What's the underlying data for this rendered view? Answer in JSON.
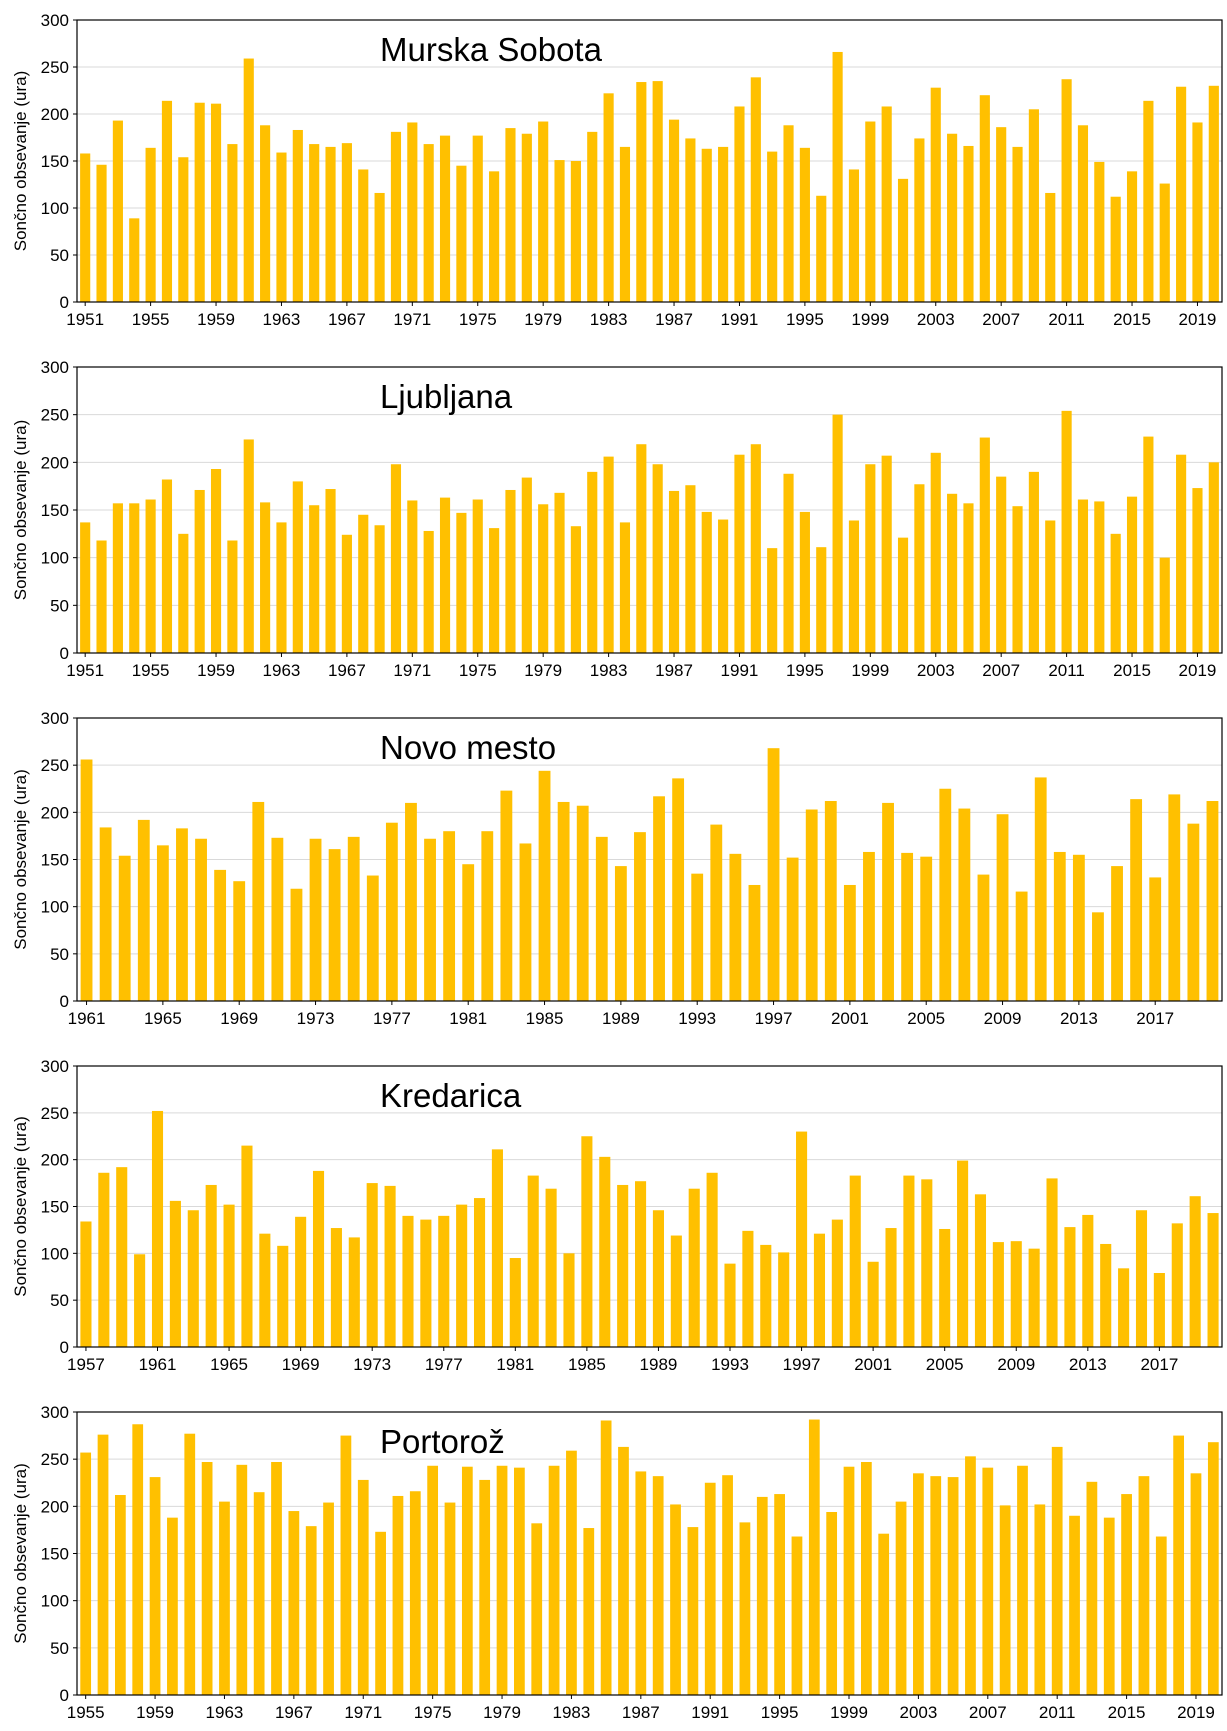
{
  "chart_data": [
    {
      "type": "bar",
      "title": "Murska Sobota",
      "ylabel": "Sončno obsevanje (ura)",
      "ylim": [
        0,
        300
      ],
      "yticks": [
        0,
        50,
        100,
        150,
        200,
        250,
        300
      ],
      "bar_color": "#FFC000",
      "grid": true,
      "x_start": 1951,
      "x_tick_labels": [
        "1951",
        "1955",
        "1959",
        "1963",
        "1967",
        "1971",
        "1975",
        "1979",
        "1983",
        "1987",
        "1991",
        "1995",
        "1999",
        "2003",
        "2007",
        "2011",
        "2015",
        "2019"
      ],
      "values": [
        158,
        146,
        193,
        89,
        164,
        214,
        154,
        212,
        211,
        168,
        259,
        188,
        159,
        183,
        168,
        165,
        169,
        141,
        116,
        181,
        191,
        168,
        177,
        145,
        177,
        139,
        185,
        179,
        192,
        151,
        150,
        181,
        222,
        165,
        234,
        235,
        194,
        174,
        163,
        165,
        208,
        239,
        160,
        188,
        164,
        113,
        266,
        141,
        192,
        208,
        131,
        174,
        228,
        179,
        166,
        220,
        186,
        165,
        205,
        116,
        237,
        188,
        149,
        112,
        139,
        214,
        126,
        229,
        191,
        230
      ]
    },
    {
      "type": "bar",
      "title": "Ljubljana",
      "ylabel": "Sončno obsevanje (ura)",
      "ylim": [
        0,
        300
      ],
      "yticks": [
        0,
        50,
        100,
        150,
        200,
        250,
        300
      ],
      "bar_color": "#FFC000",
      "grid": true,
      "x_start": 1951,
      "x_tick_labels": [
        "1951",
        "1955",
        "1959",
        "1963",
        "1967",
        "1971",
        "1975",
        "1979",
        "1983",
        "1987",
        "1991",
        "1995",
        "1999",
        "2003",
        "2007",
        "2011",
        "2015",
        "2019"
      ],
      "values": [
        137,
        118,
        157,
        157,
        161,
        182,
        125,
        171,
        193,
        118,
        224,
        158,
        137,
        180,
        155,
        172,
        124,
        145,
        134,
        198,
        160,
        128,
        163,
        147,
        161,
        131,
        171,
        184,
        156,
        168,
        133,
        190,
        206,
        137,
        219,
        198,
        170,
        176,
        148,
        140,
        208,
        219,
        110,
        188,
        148,
        111,
        250,
        139,
        198,
        207,
        121,
        177,
        210,
        167,
        157,
        226,
        185,
        154,
        190,
        139,
        254,
        161,
        159,
        125,
        164,
        227,
        100,
        208,
        173,
        200
      ]
    },
    {
      "type": "bar",
      "title": "Novo mesto",
      "ylabel": "Sončno obsevanje (ura)",
      "ylim": [
        0,
        300
      ],
      "yticks": [
        0,
        50,
        100,
        150,
        200,
        250,
        300
      ],
      "bar_color": "#FFC000",
      "grid": true,
      "x_start": 1961,
      "x_tick_labels": [
        "1961",
        "1965",
        "1969",
        "1973",
        "1977",
        "1981",
        "1985",
        "1989",
        "1993",
        "1997",
        "2001",
        "2005",
        "2009",
        "2013",
        "2017"
      ],
      "values": [
        256,
        184,
        154,
        192,
        165,
        183,
        172,
        139,
        127,
        211,
        173,
        119,
        172,
        161,
        174,
        133,
        189,
        210,
        172,
        180,
        145,
        180,
        223,
        167,
        244,
        211,
        207,
        174,
        143,
        179,
        217,
        236,
        135,
        187,
        156,
        123,
        268,
        152,
        203,
        212,
        123,
        158,
        210,
        157,
        153,
        225,
        204,
        134,
        198,
        116,
        237,
        158,
        155,
        94,
        143,
        214,
        131,
        219,
        188,
        212
      ]
    },
    {
      "type": "bar",
      "title": "Kredarica",
      "ylabel": "Sončno obsevanje (ura)",
      "ylim": [
        0,
        300
      ],
      "yticks": [
        0,
        50,
        100,
        150,
        200,
        250,
        300
      ],
      "bar_color": "#FFC000",
      "grid": true,
      "x_start": 1957,
      "x_tick_labels": [
        "1957",
        "1961",
        "1965",
        "1969",
        "1973",
        "1977",
        "1981",
        "1985",
        "1989",
        "1993",
        "1997",
        "2001",
        "2005",
        "2009",
        "2013",
        "2017"
      ],
      "values": [
        134,
        186,
        192,
        99,
        252,
        156,
        146,
        173,
        152,
        215,
        121,
        108,
        139,
        188,
        127,
        117,
        175,
        172,
        140,
        136,
        140,
        152,
        159,
        211,
        95,
        183,
        169,
        100,
        225,
        203,
        173,
        177,
        146,
        119,
        169,
        186,
        89,
        124,
        109,
        101,
        230,
        121,
        136,
        183,
        91,
        127,
        183,
        179,
        126,
        199,
        163,
        112,
        113,
        105,
        180,
        128,
        141,
        110,
        84,
        146,
        79,
        132,
        161,
        143
      ]
    },
    {
      "type": "bar",
      "title": "Portorož",
      "ylabel": "Sončno obsevanje (ura)",
      "ylim": [
        0,
        300
      ],
      "yticks": [
        0,
        50,
        100,
        150,
        200,
        250,
        300
      ],
      "bar_color": "#FFC000",
      "grid": true,
      "x_start": 1955,
      "x_tick_labels": [
        "1955",
        "1959",
        "1963",
        "1967",
        "1971",
        "1975",
        "1979",
        "1983",
        "1987",
        "1991",
        "1995",
        "1999",
        "2003",
        "2007",
        "2011",
        "2015",
        "2019"
      ],
      "values": [
        257,
        276,
        212,
        287,
        231,
        188,
        277,
        247,
        205,
        244,
        215,
        247,
        195,
        179,
        204,
        275,
        228,
        173,
        211,
        216,
        243,
        204,
        242,
        228,
        243,
        241,
        182,
        243,
        259,
        177,
        291,
        263,
        237,
        232,
        202,
        178,
        225,
        233,
        183,
        210,
        213,
        168,
        292,
        194,
        242,
        247,
        171,
        205,
        235,
        232,
        231,
        253,
        241,
        201,
        243,
        202,
        263,
        190,
        226,
        188,
        213,
        232,
        168,
        275,
        235,
        268
      ]
    }
  ]
}
